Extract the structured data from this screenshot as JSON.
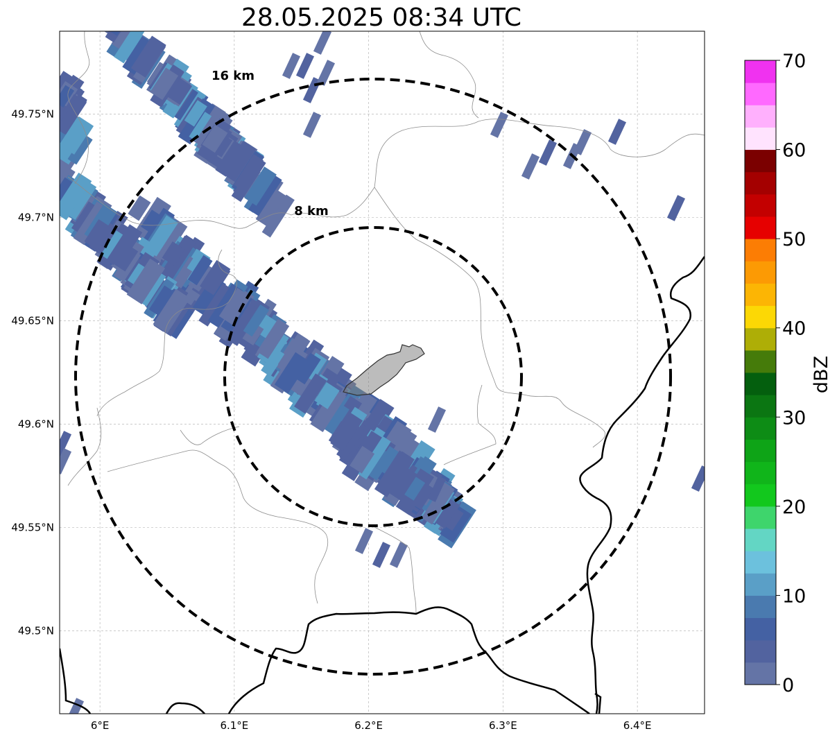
{
  "title": "28.05.2025 08:34 UTC",
  "map": {
    "lon_range": [
      5.97,
      6.45
    ],
    "lat_range": [
      49.46,
      49.79
    ],
    "x_ticks": [
      {
        "value": 6.0,
        "label": "6°E"
      },
      {
        "value": 6.1,
        "label": "6.1°E"
      },
      {
        "value": 6.2,
        "label": "6.2°E"
      },
      {
        "value": 6.3,
        "label": "6.3°E"
      },
      {
        "value": 6.4,
        "label": "6.4°E"
      }
    ],
    "y_ticks": [
      {
        "value": 49.75,
        "label": "49.75°N"
      },
      {
        "value": 49.7,
        "label": "49.7°N"
      },
      {
        "value": 49.65,
        "label": "49.65°N"
      },
      {
        "value": 49.6,
        "label": "49.6°N"
      },
      {
        "value": 49.55,
        "label": "49.55°N"
      },
      {
        "value": 49.5,
        "label": "49.5°N"
      }
    ],
    "gridlines": true,
    "range_rings": [
      {
        "label": "8 km",
        "radius_km": 8
      },
      {
        "label": "16 km",
        "radius_km": 16
      }
    ],
    "center": {
      "lon": 6.2,
      "lat": 49.623
    }
  },
  "colorbar": {
    "label": "dBZ",
    "ticks": [
      "0",
      "10",
      "20",
      "30",
      "40",
      "50",
      "60",
      "70"
    ],
    "colors": [
      "#6474a6",
      "#52639f",
      "#4461a3",
      "#4a7aaf",
      "#5a9fc7",
      "#6cc1dd",
      "#63d6c4",
      "#3ed56c",
      "#12c81d",
      "#10b51a",
      "#0ea417",
      "#0d8c15",
      "#0b7612",
      "#045f0e",
      "#457b0a",
      "#aeae06",
      "#fcd805",
      "#fcb504",
      "#fc9a04",
      "#fc7d04",
      "#e60000",
      "#c30000",
      "#a40000",
      "#7b0000",
      "#ffe3fe",
      "#ffb0fd",
      "#ff69ff",
      "#f032f0"
    ]
  }
}
